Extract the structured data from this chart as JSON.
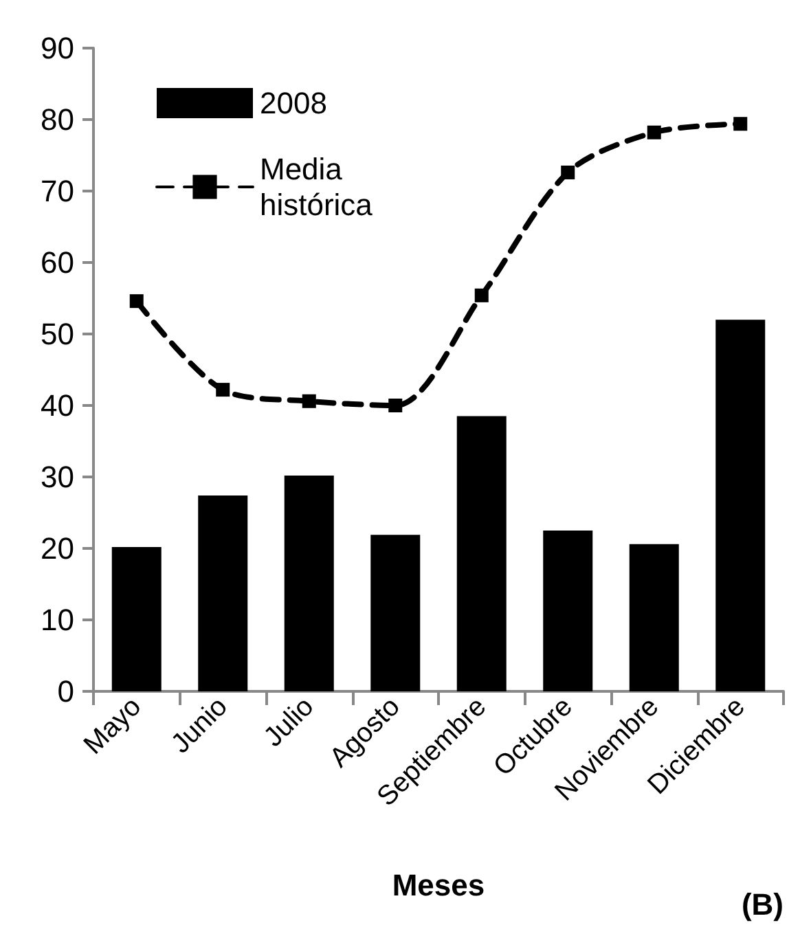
{
  "chart_data": {
    "type": "bar",
    "xlabel": "Meses",
    "annotations": [
      "(B)"
    ],
    "categories": [
      "Mayo",
      "Junio",
      "Julio",
      "Agosto",
      "Septiembre",
      "Octubre",
      "Noviembre",
      "Diciembre"
    ],
    "series": [
      {
        "name": "2008",
        "color": "#000000",
        "values": [
          20.2,
          27.4,
          30.2,
          21.9,
          38.5,
          22.5,
          20.6,
          52.0
        ]
      },
      {
        "name": "Media histórica",
        "type": "line",
        "color": "#000000",
        "marker": "square",
        "line_style": "dashed",
        "values": [
          54.6,
          42.2,
          40.6,
          40.0,
          55.4,
          72.6,
          78.2,
          79.4
        ]
      }
    ],
    "ylim": [
      0,
      90
    ],
    "yticks": [
      0,
      10,
      20,
      30,
      40,
      50,
      60,
      70,
      80,
      90
    ],
    "grid": false,
    "legend": "top left"
  }
}
